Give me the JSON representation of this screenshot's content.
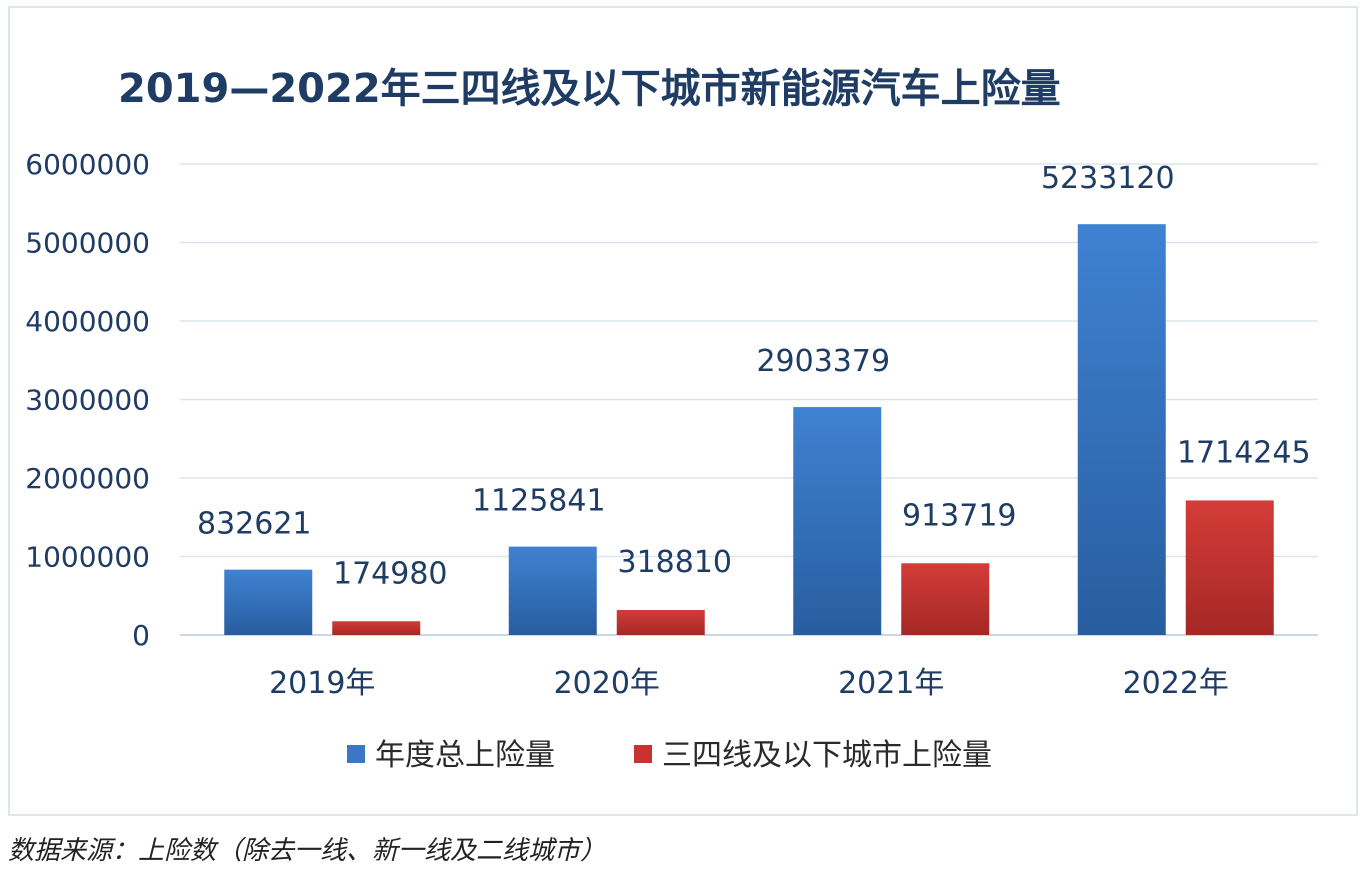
{
  "chart_data": {
    "type": "bar",
    "title": "2019—2022年三四线及以下城市新能源汽车上险量",
    "categories": [
      "2019年",
      "2020年",
      "2021年",
      "2022年"
    ],
    "series": [
      {
        "name": "年度总上险量",
        "values": [
          832621,
          1125841,
          2903379,
          5233120
        ],
        "color": "#3a78c3"
      },
      {
        "name": "三四线及以下城市上险量",
        "values": [
          174980,
          318810,
          913719,
          1714245
        ],
        "color": "#c83330"
      }
    ],
    "ylim": [
      0,
      6000000
    ],
    "yticks": [
      "0",
      "1000000",
      "2000000",
      "3000000",
      "4000000",
      "5000000",
      "6000000"
    ],
    "grid": true,
    "legend": "bottom-center"
  },
  "source_note": "数据来源：上险数（除去一线、新一线及二线城市）"
}
